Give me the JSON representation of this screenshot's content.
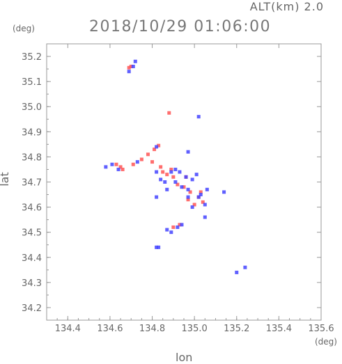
{
  "chart_data": {
    "type": "scatter",
    "title": "2018/10/29 01:06:00",
    "subtitle": "ALT(km) 2.0",
    "xlabel": "lon",
    "ylabel": "lat",
    "x_unit": "(deg)",
    "y_unit": "(deg)",
    "xlim": [
      134.3,
      135.6
    ],
    "ylim": [
      34.15,
      35.25
    ],
    "x_ticks": [
      "134.4",
      "134.6",
      "134.8",
      "135.0",
      "135.2",
      "135.4",
      "135.6"
    ],
    "y_ticks": [
      "34.2",
      "34.3",
      "34.4",
      "34.5",
      "34.6",
      "34.7",
      "34.8",
      "34.9",
      "35.0",
      "35.1",
      "35.2"
    ],
    "colors": {
      "positive": "#ff5555",
      "negative": "#4444ff",
      "axis": "#999999"
    },
    "series": [
      {
        "color_key": "positive",
        "points": [
          [
            134.69,
            35.155
          ],
          [
            134.7,
            35.16
          ],
          [
            134.88,
            34.975
          ],
          [
            134.83,
            34.845
          ],
          [
            134.81,
            34.83
          ],
          [
            134.78,
            34.81
          ],
          [
            134.75,
            34.79
          ],
          [
            134.63,
            34.77
          ],
          [
            134.65,
            34.76
          ],
          [
            134.66,
            34.75
          ],
          [
            134.85,
            34.74
          ],
          [
            134.87,
            34.73
          ],
          [
            134.9,
            34.72
          ],
          [
            134.92,
            34.69
          ],
          [
            134.95,
            34.68
          ],
          [
            134.98,
            34.66
          ],
          [
            135.02,
            34.64
          ],
          [
            135.0,
            34.61
          ],
          [
            135.04,
            34.62
          ],
          [
            134.9,
            34.52
          ],
          [
            134.93,
            34.53
          ],
          [
            134.84,
            34.76
          ],
          [
            134.89,
            34.75
          ],
          [
            134.71,
            34.77
          ],
          [
            135.03,
            34.66
          ],
          [
            134.96,
            34.72
          ],
          [
            134.8,
            34.78
          ],
          [
            134.97,
            34.63
          ]
        ]
      },
      {
        "color_key": "negative",
        "points": [
          [
            134.72,
            35.18
          ],
          [
            134.69,
            35.14
          ],
          [
            134.71,
            35.16
          ],
          [
            135.02,
            34.96
          ],
          [
            134.97,
            34.82
          ],
          [
            134.82,
            34.84
          ],
          [
            134.58,
            34.76
          ],
          [
            134.61,
            34.77
          ],
          [
            134.64,
            34.75
          ],
          [
            134.73,
            34.78
          ],
          [
            134.82,
            34.74
          ],
          [
            134.84,
            34.71
          ],
          [
            134.86,
            34.7
          ],
          [
            134.89,
            34.74
          ],
          [
            134.91,
            34.75
          ],
          [
            134.93,
            34.74
          ],
          [
            134.96,
            34.72
          ],
          [
            134.99,
            34.71
          ],
          [
            135.01,
            34.73
          ],
          [
            134.94,
            34.68
          ],
          [
            134.97,
            34.67
          ],
          [
            135.03,
            34.65
          ],
          [
            135.06,
            34.67
          ],
          [
            135.05,
            34.61
          ],
          [
            134.99,
            34.6
          ],
          [
            134.87,
            34.51
          ],
          [
            134.89,
            34.5
          ],
          [
            134.92,
            34.52
          ],
          [
            134.82,
            34.44
          ],
          [
            134.83,
            34.44
          ],
          [
            135.2,
            34.34
          ],
          [
            135.24,
            34.36
          ],
          [
            135.02,
            34.64
          ],
          [
            134.87,
            34.67
          ],
          [
            134.91,
            34.7
          ],
          [
            135.05,
            34.56
          ],
          [
            135.14,
            34.66
          ],
          [
            134.82,
            34.64
          ],
          [
            134.97,
            34.64
          ],
          [
            134.94,
            34.53
          ]
        ]
      }
    ]
  }
}
